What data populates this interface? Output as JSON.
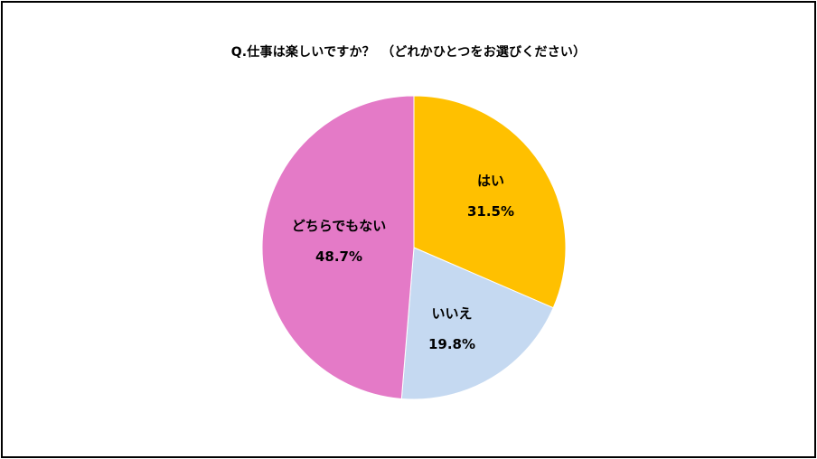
{
  "chart_data": {
    "type": "pie",
    "title": "Q.仕事は楽しいですか？　（どれかひとつをお選びください）",
    "slices": [
      {
        "label": "はい",
        "value": 31.5,
        "value_label": "31.5%",
        "color": "#FFC000"
      },
      {
        "label": "いいえ",
        "value": 19.8,
        "value_label": "19.8%",
        "color": "#C5D9F1"
      },
      {
        "label": "どちらでもない",
        "value": 48.7,
        "value_label": "48.7%",
        "color": "#E47AC7"
      }
    ],
    "start": "top",
    "direction": "clockwise",
    "legend": "none"
  }
}
